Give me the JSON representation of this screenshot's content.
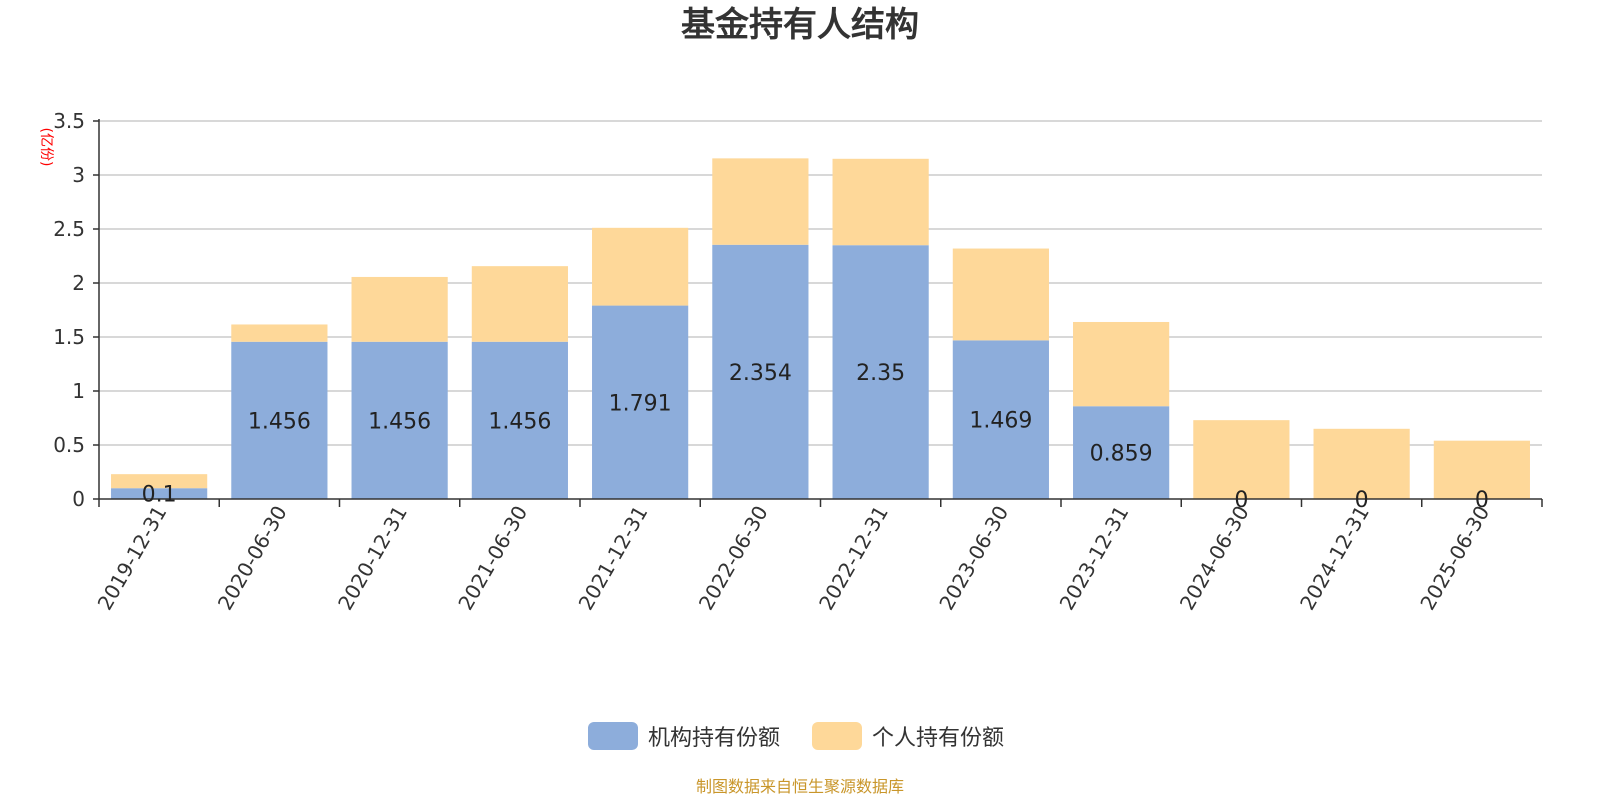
{
  "chart_data": {
    "type": "bar",
    "stacked": true,
    "title": "基金持有人结构",
    "unit_label": "(亿份)",
    "source": "制图数据来自恒生聚源数据库",
    "categories": [
      "2019-12-31",
      "2020-06-30",
      "2020-12-31",
      "2021-06-30",
      "2021-12-31",
      "2022-06-30",
      "2022-12-31",
      "2023-06-30",
      "2023-12-31",
      "2024-06-30",
      "2024-12-31",
      "2025-06-30"
    ],
    "ylim": [
      0,
      3.5
    ],
    "yticks": [
      "0",
      "0.5",
      "1",
      "1.5",
      "2",
      "2.5",
      "3",
      "3.5"
    ],
    "grid": true,
    "legend_position": "bottom",
    "series": [
      {
        "name": "机构持有份额",
        "color": "#8daddb",
        "values": [
          0.1,
          1.456,
          1.456,
          1.456,
          1.791,
          2.354,
          2.35,
          1.469,
          0.859,
          0,
          0,
          0
        ],
        "labels": [
          "0.1",
          "1.456",
          "1.456",
          "1.456",
          "1.791",
          "2.354",
          "2.35",
          "1.469",
          "0.859",
          "0",
          "0",
          "0"
        ]
      },
      {
        "name": "个人持有份额",
        "color": "#fed899",
        "values": [
          0.13,
          0.16,
          0.6,
          0.7,
          0.72,
          0.8,
          0.8,
          0.85,
          0.78,
          0.73,
          0.65,
          0.54
        ]
      }
    ]
  }
}
